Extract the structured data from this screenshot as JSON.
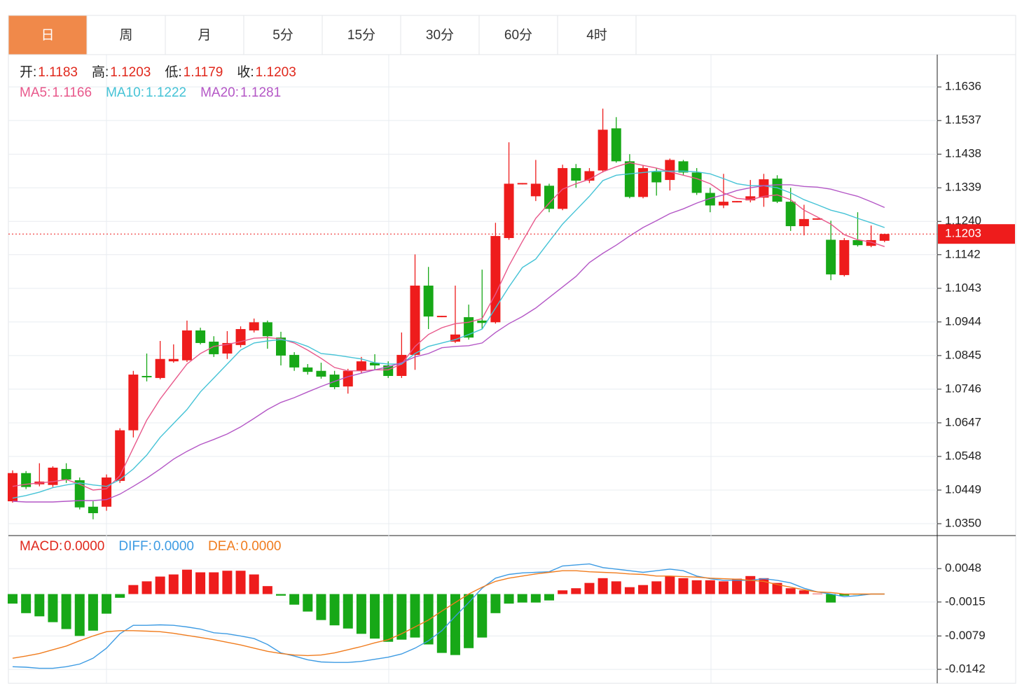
{
  "tabs": {
    "items": [
      "日",
      "周",
      "月",
      "5分",
      "15分",
      "30分",
      "60分",
      "4时"
    ],
    "active": 0
  },
  "chart_data": [
    {
      "type": "candlestick",
      "ohlc_legend": [
        {
          "label": "开:",
          "value": 1.1183
        },
        {
          "label": "高:",
          "value": 1.1203
        },
        {
          "label": "低:",
          "value": 1.1179
        },
        {
          "label": "收:",
          "value": 1.1203
        }
      ],
      "up_color": "#ee1c1c",
      "down_color": "#17a817",
      "open": [
        1.0416,
        1.0499,
        1.0466,
        1.0464,
        1.0511,
        1.0478,
        1.04,
        1.04,
        1.0476,
        1.0625,
        1.0785,
        1.0779,
        1.0828,
        1.0831,
        1.0919,
        1.0886,
        1.0851,
        1.0876,
        1.0919,
        1.0943,
        1.0898,
        1.0847,
        1.081,
        1.08,
        1.0789,
        1.0754,
        1.08,
        1.0824,
        1.0816,
        1.0785,
        1.0847,
        1.1051,
        1.0958,
        1.0886,
        1.0958,
        1.0948,
        1.0943,
        1.1191,
        1.1349,
        1.1314,
        1.1345,
        1.1277,
        1.1397,
        1.136,
        1.139,
        1.1514,
        1.1417,
        1.1312,
        1.1386,
        1.1362,
        1.1417,
        1.1384,
        1.1324,
        1.1287,
        1.1296,
        1.1302,
        1.131,
        1.1366,
        1.1298,
        1.1226,
        1.1245,
        1.1186,
        1.1082,
        1.1185,
        1.1168,
        1.1183
      ],
      "high": [
        1.0507,
        1.0505,
        1.0528,
        1.0519,
        1.0528,
        1.0486,
        1.0416,
        1.0495,
        1.0631,
        1.08,
        1.0851,
        1.0888,
        1.0878,
        1.0948,
        1.0927,
        1.0902,
        1.0917,
        1.0931,
        1.0954,
        1.0948,
        1.0915,
        1.0855,
        1.082,
        1.0824,
        1.08,
        1.0806,
        1.0841,
        1.0849,
        1.0828,
        1.0913,
        1.1143,
        1.1106,
        1.0962,
        1.1051,
        1.0995,
        1.1098,
        1.1236,
        1.1473,
        1.1353,
        1.1421,
        1.1351,
        1.1407,
        1.1409,
        1.1397,
        1.1572,
        1.1547,
        1.1438,
        1.1405,
        1.1397,
        1.1425,
        1.1421,
        1.1397,
        1.1339,
        1.138,
        1.13,
        1.1362,
        1.138,
        1.1376,
        1.1339,
        1.1289,
        1.1249,
        1.1242,
        1.1191,
        1.1267,
        1.1228,
        1.1203
      ],
      "low": [
        1.0412,
        1.0452,
        1.046,
        1.0458,
        1.047,
        1.0392,
        1.0363,
        1.0388,
        1.047,
        1.0604,
        1.0769,
        1.0775,
        1.0824,
        1.0826,
        1.0878,
        1.0841,
        1.0835,
        1.0869,
        1.0913,
        1.0865,
        1.0816,
        1.08,
        1.0789,
        1.0777,
        1.0746,
        1.0733,
        1.0793,
        1.0803,
        1.0779,
        1.0779,
        1.0803,
        1.0923,
        1.0958,
        1.0882,
        1.0892,
        1.0923,
        1.0939,
        1.1186,
        1.1349,
        1.13,
        1.1267,
        1.1273,
        1.1339,
        1.1353,
        1.1384,
        1.1413,
        1.1308,
        1.1308,
        1.1316,
        1.1331,
        1.1376,
        1.1318,
        1.1267,
        1.1279,
        1.1296,
        1.1296,
        1.1283,
        1.1294,
        1.1212,
        1.1199,
        1.1245,
        1.1067,
        1.1078,
        1.1166,
        1.1164,
        1.1179
      ],
      "close": [
        1.0499,
        1.0458,
        1.0474,
        1.0515,
        1.048,
        1.0398,
        1.0381,
        1.0486,
        1.0625,
        1.0789,
        1.0781,
        1.0835,
        1.0835,
        1.0919,
        1.0882,
        1.0849,
        1.0882,
        1.0923,
        1.0943,
        1.0902,
        1.0845,
        1.081,
        1.0797,
        1.0783,
        1.0752,
        1.08,
        1.0828,
        1.0816,
        1.0785,
        1.0847,
        1.1051,
        1.096,
        1.0962,
        1.0907,
        1.0898,
        1.0941,
        1.1197,
        1.1351,
        1.1353,
        1.1351,
        1.1277,
        1.1397,
        1.136,
        1.1388,
        1.151,
        1.1417,
        1.1312,
        1.1397,
        1.1355,
        1.1421,
        1.1384,
        1.1324,
        1.1287,
        1.1298,
        1.13,
        1.1314,
        1.1364,
        1.1298,
        1.1226,
        1.1247,
        1.1249,
        1.1084,
        1.1185,
        1.117,
        1.1185,
        1.1203
      ],
      "series": [
        {
          "name": "MA5:",
          "color": "#e8588b",
          "current": 1.1166,
          "values": [
            1.046,
            1.0466,
            1.047,
            1.0474,
            1.048,
            1.0466,
            1.0449,
            1.0453,
            1.0491,
            1.0573,
            1.0655,
            1.0717,
            1.0769,
            1.082,
            1.0851,
            1.0872,
            1.0878,
            1.0886,
            1.0896,
            1.0898,
            1.0894,
            1.0882,
            1.0861,
            1.0837,
            1.081,
            1.08,
            1.08,
            1.0803,
            1.0803,
            1.082,
            1.0872,
            1.0907,
            1.0927,
            1.0939,
            1.0943,
            1.0954,
            1.1026,
            1.1109,
            1.1181,
            1.1249,
            1.1294,
            1.1335,
            1.1351,
            1.1364,
            1.1386,
            1.1401,
            1.1413,
            1.1405,
            1.1397,
            1.1386,
            1.1376,
            1.1366,
            1.1351,
            1.1324,
            1.1308,
            1.1304,
            1.1314,
            1.1318,
            1.1304,
            1.1273,
            1.1253,
            1.1232,
            1.1201,
            1.1186,
            1.1179,
            1.1166
          ]
        },
        {
          "name": "MA10:",
          "color": "#45c3d6",
          "current": 1.1222,
          "values": [
            1.0425,
            1.0433,
            1.0443,
            1.0456,
            1.0464,
            1.047,
            1.0464,
            1.046,
            1.048,
            1.0511,
            1.0552,
            1.0604,
            1.0645,
            1.0686,
            1.0738,
            1.0779,
            1.082,
            1.0861,
            1.0882,
            1.0888,
            1.0892,
            1.0886,
            1.0872,
            1.0851,
            1.0847,
            1.0841,
            1.0835,
            1.0824,
            1.082,
            1.082,
            1.0851,
            1.0872,
            1.0882,
            1.0892,
            1.0907,
            1.0923,
            1.0985,
            1.1047,
            1.1104,
            1.1129,
            1.1181,
            1.1232,
            1.1273,
            1.1314,
            1.136,
            1.1376,
            1.138,
            1.1384,
            1.1388,
            1.1388,
            1.1388,
            1.1386,
            1.138,
            1.1366,
            1.1351,
            1.1345,
            1.1345,
            1.1339,
            1.1324,
            1.1304,
            1.1289,
            1.1273,
            1.1263,
            1.1249,
            1.1236,
            1.1222
          ]
        },
        {
          "name": "MA20:",
          "color": "#b457c6",
          "current": 1.1281,
          "values": [
            1.0416,
            1.0414,
            1.0414,
            1.0414,
            1.0416,
            1.0418,
            1.0418,
            1.0421,
            1.0437,
            1.046,
            1.0484,
            1.0511,
            1.054,
            1.0563,
            1.0583,
            1.0598,
            1.0614,
            1.0635,
            1.066,
            1.0686,
            1.0707,
            1.0721,
            1.0738,
            1.0754,
            1.0769,
            1.0783,
            1.0793,
            1.0803,
            1.0812,
            1.0824,
            1.0841,
            1.0851,
            1.0868,
            1.0872,
            1.0874,
            1.0882,
            1.0913,
            1.0939,
            1.096,
            1.0985,
            1.1016,
            1.1047,
            1.1078,
            1.1119,
            1.1146,
            1.117,
            1.1197,
            1.1222,
            1.1242,
            1.1263,
            1.1277,
            1.1294,
            1.1308,
            1.1318,
            1.1331,
            1.1339,
            1.1345,
            1.1348,
            1.1348,
            1.1343,
            1.1341,
            1.1335,
            1.1324,
            1.1314,
            1.1298,
            1.1281
          ]
        }
      ],
      "ylim": [
        1.0315,
        1.1727
      ],
      "yticks": [
        1.1636,
        1.1537,
        1.1438,
        1.1339,
        {
          "value": 1.124,
          "label": "1.1240"
        },
        1.1142,
        1.1043,
        1.0944,
        1.0845,
        1.0746,
        1.0647,
        1.0548,
        1.0449,
        {
          "value": 1.035,
          "label": "1.0350"
        }
      ],
      "grid": true
    },
    {
      "type": "macd",
      "up_color": "#ee1c1c",
      "down_color": "#17a817",
      "series": [
        {
          "name": "MACD:",
          "color": "#e0281c",
          "current": {
            "value": 0,
            "label": "0.0000"
          },
          "values": [
            -0.0018,
            -0.0036,
            -0.0042,
            -0.0053,
            -0.0066,
            -0.0079,
            -0.0069,
            -0.0037,
            -0.0007,
            0.0017,
            0.0024,
            0.0033,
            0.0037,
            0.0046,
            0.0041,
            0.0041,
            0.0044,
            0.0044,
            0.0037,
            0.0015,
            -0.0003,
            -0.002,
            -0.0033,
            -0.0049,
            -0.0059,
            -0.0065,
            -0.0075,
            -0.0084,
            -0.009,
            -0.0086,
            -0.0082,
            -0.0095,
            -0.0111,
            -0.0115,
            -0.0102,
            -0.0082,
            -0.0036,
            -0.0018,
            -0.0016,
            -0.0016,
            -0.0012,
            0.0007,
            0.0011,
            0.0021,
            0.003,
            0.0024,
            0.0013,
            0.0017,
            0.0024,
            0.0034,
            0.003,
            0.0026,
            0.0026,
            0.0024,
            0.0029,
            0.0034,
            0.003,
            0.0021,
            0.0011,
            0.0007,
            0.0001,
            -0.0016,
            -0.0003,
            -0.0001,
            0,
            0
          ]
        },
        {
          "name": "DIFF:",
          "color": "#3d9be3",
          "current": {
            "value": 0,
            "label": "0.0000"
          },
          "values": [
            -0.0137,
            -0.0138,
            -0.014,
            -0.014,
            -0.0137,
            -0.0132,
            -0.0121,
            -0.0102,
            -0.0075,
            -0.0059,
            -0.0059,
            -0.0058,
            -0.0059,
            -0.0062,
            -0.0066,
            -0.0073,
            -0.0075,
            -0.0079,
            -0.0084,
            -0.0095,
            -0.0111,
            -0.0117,
            -0.0124,
            -0.0128,
            -0.0129,
            -0.0129,
            -0.0127,
            -0.0123,
            -0.0119,
            -0.0113,
            -0.0102,
            -0.0088,
            -0.0069,
            -0.0042,
            -0.0016,
            0.0011,
            0.003,
            0.0037,
            0.004,
            0.0041,
            0.0042,
            0.0053,
            0.0055,
            0.0057,
            0.005,
            0.0047,
            0.0044,
            0.0041,
            0.0044,
            0.0047,
            0.0044,
            0.0034,
            0.0029,
            0.0026,
            0.0026,
            0.0026,
            0.0029,
            0.0026,
            0.0021,
            0.0011,
            0.0004,
            0,
            -0.0005,
            -0.0003,
            0,
            0
          ]
        },
        {
          "name": "DEA:",
          "color": "#f07c1e",
          "current": {
            "value": 0,
            "label": "0.0000"
          },
          "values": [
            -0.0121,
            -0.0117,
            -0.0112,
            -0.0105,
            -0.0098,
            -0.0088,
            -0.0079,
            -0.0071,
            -0.0069,
            -0.0069,
            -0.007,
            -0.0071,
            -0.0074,
            -0.0078,
            -0.0082,
            -0.0086,
            -0.0091,
            -0.0096,
            -0.0102,
            -0.0108,
            -0.0112,
            -0.0115,
            -0.0116,
            -0.0115,
            -0.0111,
            -0.0105,
            -0.0099,
            -0.0092,
            -0.0086,
            -0.0075,
            -0.0062,
            -0.0049,
            -0.0032,
            -0.0016,
            0,
            0.0013,
            0.0024,
            0.003,
            0.0034,
            0.0038,
            0.0041,
            0.0044,
            0.0044,
            0.0042,
            0.0041,
            0.004,
            0.0038,
            0.0037,
            0.0034,
            0.0034,
            0.0033,
            0.0032,
            0.003,
            0.0029,
            0.0028,
            0.0026,
            0.0024,
            0.0018,
            0.0013,
            0.0008,
            0.0004,
            0.0003,
            0,
            0,
            0,
            0
          ]
        }
      ],
      "ylim": [
        -0.0167,
        0.0109
      ],
      "yticks": [
        0.0048,
        -0.0015,
        -0.0079,
        -0.0142
      ],
      "grid": true
    }
  ]
}
